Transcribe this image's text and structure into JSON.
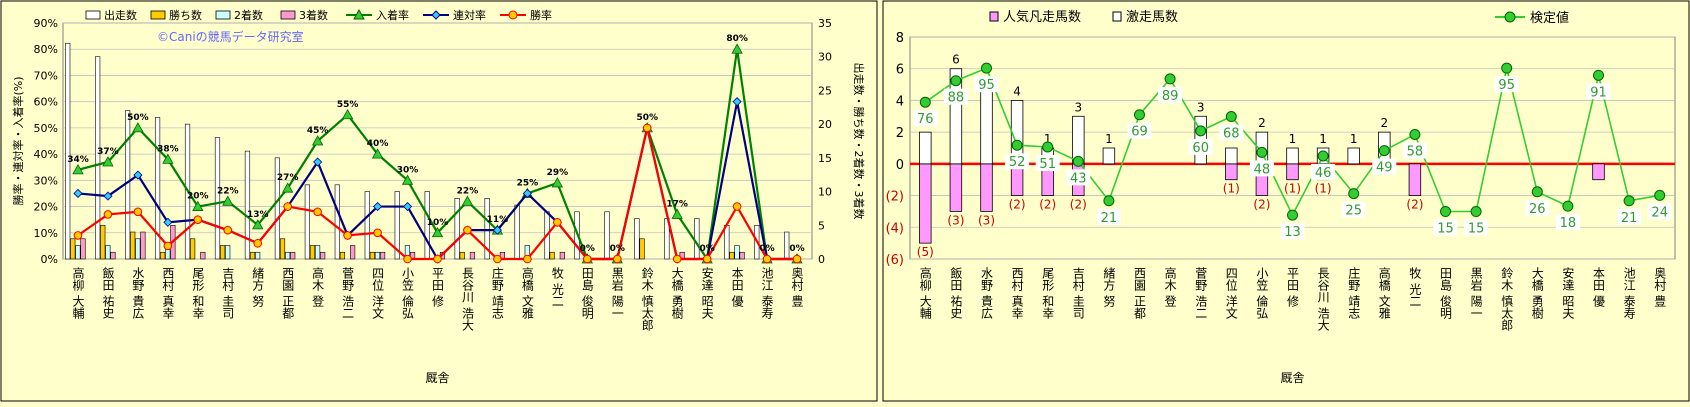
{
  "chart_data": [
    {
      "type": "bar+line",
      "title": "",
      "watermark": "©Caniの競馬データ研究室",
      "xlabel": "厩舎",
      "ylabel_left": "勝率・連対率・入着率(%)",
      "ylabel_right": "出走数・勝ち数・2着数・3着数",
      "ylim_left": [
        0,
        90
      ],
      "ylim_right": [
        0,
        35
      ],
      "yticks_left": [
        "0%",
        "10%",
        "20%",
        "30%",
        "40%",
        "50%",
        "60%",
        "70%",
        "80%",
        "90%"
      ],
      "yticks_right": [
        "0",
        "5",
        "10",
        "15",
        "20",
        "25",
        "30",
        "35"
      ],
      "grid": true,
      "legend_position": "top",
      "categories": [
        "高柳 大輔",
        "飯田 祐史",
        "水野 貴広",
        "西村 真幸",
        "尾形 和幸",
        "吉村 圭司",
        "緒方 努",
        "西園 正都",
        "高木 登",
        "菅野 浩二",
        "四位 洋文",
        "小笠 倫弘",
        "平田 修",
        "長谷川 浩大",
        "庄野 靖志",
        "高橋 文雅",
        "牧 光二",
        "田島 俊明",
        "黒岩 陽一",
        "鈴木 慎太郎",
        "大橋 勇樹",
        "安達 昭夫",
        "本田 優",
        "池江 泰寿",
        "奥村 豊"
      ],
      "series": [
        {
          "name": "出走数",
          "kind": "bar",
          "axis": "right",
          "color": "#ffffff",
          "values": [
            32,
            30,
            22,
            21,
            20,
            18,
            16,
            15,
            11,
            11,
            10,
            10,
            10,
            9,
            9,
            8,
            7,
            7,
            7,
            6,
            6,
            6,
            5,
            5,
            4
          ]
        },
        {
          "name": "勝ち数",
          "kind": "bar",
          "axis": "right",
          "color": "#ffcc00",
          "values": [
            3,
            5,
            4,
            1,
            3,
            2,
            1,
            3,
            2,
            1,
            1,
            0,
            0,
            1,
            0,
            0,
            1,
            0,
            0,
            3,
            0,
            0,
            1,
            0,
            0
          ]
        },
        {
          "name": "2着数",
          "kind": "bar",
          "axis": "right",
          "color": "#ccffff",
          "values": [
            2,
            2,
            3,
            2,
            0,
            2,
            1,
            1,
            2,
            0,
            1,
            2,
            0,
            0,
            0,
            2,
            0,
            0,
            0,
            0,
            0,
            0,
            2,
            0,
            0
          ]
        },
        {
          "name": "3着数",
          "kind": "bar",
          "axis": "right",
          "color": "#ff99cc",
          "values": [
            3,
            1,
            4,
            5,
            1,
            0,
            0,
            1,
            1,
            2,
            1,
            1,
            1,
            1,
            1,
            0,
            1,
            0,
            0,
            0,
            1,
            0,
            1,
            0,
            0
          ]
        },
        {
          "name": "入着率",
          "kind": "line",
          "axis": "left",
          "color": "#008000",
          "marker": "triangle",
          "values": [
            34,
            37,
            50,
            38,
            20,
            22,
            13,
            27,
            45,
            55,
            40,
            30,
            10,
            22,
            11,
            25,
            29,
            0,
            0,
            50,
            17,
            0,
            80,
            0,
            0
          ]
        },
        {
          "name": "連対率",
          "kind": "line",
          "axis": "left",
          "color": "#000080",
          "marker": "diamond",
          "values": [
            25,
            24,
            32,
            14,
            15,
            11,
            6,
            20,
            37,
            9,
            20,
            20,
            0,
            11,
            11,
            25,
            14,
            0,
            0,
            50,
            0,
            0,
            60,
            0,
            0
          ]
        },
        {
          "name": "勝率",
          "kind": "line",
          "axis": "left",
          "color": "#ff0000",
          "marker": "circle",
          "values": [
            9,
            17,
            18,
            5,
            15,
            11,
            6,
            20,
            18,
            9,
            10,
            0,
            0,
            11,
            0,
            0,
            14,
            0,
            0,
            50,
            0,
            0,
            20,
            0,
            0
          ]
        }
      ],
      "data_labels_left_line": [
        "34%",
        "37%",
        "50%",
        "38%",
        "20%",
        "22%",
        "13%",
        "27%",
        "45%",
        "55%",
        "40%",
        "30%",
        "10%",
        "22%",
        "11%",
        "25%",
        "29%",
        "0%",
        "0%",
        "50%",
        "17%",
        "0%",
        "80%",
        "0%",
        "0%"
      ]
    },
    {
      "type": "bar+line",
      "title": "",
      "xlabel": "厩舎",
      "ylim": [
        -6,
        8
      ],
      "yticks": [
        "(6)",
        "(4)",
        "(2)",
        "0",
        "2",
        "4",
        "6",
        "8"
      ],
      "grid": true,
      "legend_position": "top",
      "categories": [
        "高柳 大輔",
        "飯田 祐史",
        "水野 貴広",
        "西村 真幸",
        "尾形 和幸",
        "吉村 圭司",
        "緒方 努",
        "西園 正都",
        "高木 登",
        "菅野 浩二",
        "四位 洋文",
        "小笠 倫弘",
        "平田 修",
        "長谷川 浩大",
        "庄野 靖志",
        "高橋 文雅",
        "牧 光二",
        "田島 俊明",
        "黒岩 陽一",
        "鈴木 慎太郎",
        "大橋 勇樹",
        "安達 昭夫",
        "本田 優",
        "池江 泰寿",
        "奥村 豊"
      ],
      "series": [
        {
          "name": "人気凡走馬数",
          "kind": "bar",
          "color": "#ff99ff",
          "values": [
            -5,
            -3,
            -3,
            -2,
            -2,
            -2,
            0,
            0,
            0,
            0,
            -1,
            -2,
            -1,
            -1,
            0,
            0,
            -2,
            0,
            0,
            0,
            0,
            0,
            -1,
            0,
            0
          ]
        },
        {
          "name": "激走馬数",
          "kind": "bar",
          "color": "#ffffff",
          "values": [
            2,
            6,
            5,
            4,
            1,
            3,
            1,
            0,
            0,
            3,
            1,
            2,
            1,
            1,
            1,
            2,
            0,
            0,
            0,
            0,
            0,
            0,
            0,
            0,
            0
          ]
        },
        {
          "name": "検定値",
          "kind": "line",
          "color": "#33cc33",
          "marker": "circle",
          "values": [
            76,
            88,
            95,
            52,
            51,
            43,
            21,
            69,
            89,
            60,
            68,
            48,
            13,
            46,
            25,
            49,
            58,
            15,
            15,
            95,
            26,
            18,
            91,
            21,
            24
          ]
        }
      ],
      "bar_top_labels": [
        "",
        "6",
        "",
        "4",
        "1",
        "3",
        "1",
        "",
        "",
        "3",
        "",
        "2",
        "1",
        "1",
        "1",
        "2",
        "",
        "",
        "",
        "",
        "",
        "",
        "",
        "",
        ""
      ],
      "bar_bottom_labels": [
        "(5)",
        "(3)",
        "(3)",
        "(2)",
        "(2)",
        "(2)",
        "",
        "",
        "",
        "",
        "(1)",
        "(2)",
        "(1)",
        "(1)",
        "",
        "",
        "(2)",
        "",
        "",
        "",
        "",
        "",
        "",
        "",
        ""
      ]
    }
  ]
}
